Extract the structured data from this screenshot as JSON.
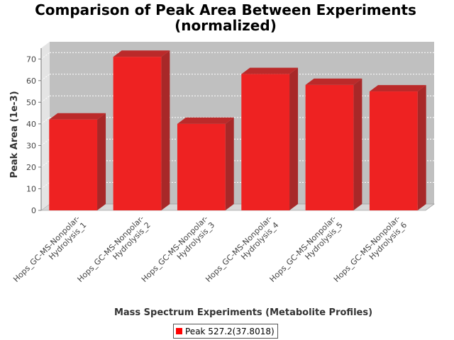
{
  "chart_data": {
    "type": "bar",
    "title": "Comparison of Peak Area Between Experiments",
    "subtitle": "(normalized)",
    "xlabel": "Mass Spectrum Experiments (Metabolite Profiles)",
    "ylabel": "Peak Area (1e-3)",
    "categories": [
      "Hops_GC-MS-Nonpolar-Hydrolysis_1",
      "Hops_GC-MS-Nonpolar-Hydrolysis_2",
      "Hops_GC-MS-Nonpolar-Hydrolysis_3",
      "Hops_GC-MS-Nonpolar-Hydrolysis_4",
      "Hops_GC-MS-Nonpolar-Hydrolysis_5",
      "Hops_GC-MS-Nonpolar-Hydrolysis_6"
    ],
    "category_lines": [
      [
        "Hops_GC-MS-Nonpolar-",
        "Hydrolysis_1"
      ],
      [
        "Hops_GC-MS-Nonpolar-",
        "Hydrolysis_2"
      ],
      [
        "Hops_GC-MS-Nonpolar-",
        "Hydrolysis_3"
      ],
      [
        "Hops_GC-MS-Nonpolar-",
        "Hydrolysis_4"
      ],
      [
        "Hops_GC-MS-Nonpolar-",
        "Hydrolysis_5"
      ],
      [
        "Hops_GC-MS-Nonpolar-",
        "Hydrolysis_6"
      ]
    ],
    "series": [
      {
        "name": "Peak 527.2(37.8018)",
        "values": [
          42,
          71,
          40,
          63,
          58,
          55
        ]
      }
    ],
    "ylim": [
      0,
      75
    ],
    "yticks": [
      0,
      10,
      20,
      30,
      40,
      50,
      60,
      70
    ],
    "grid": true,
    "legend": "bottom-center",
    "colors": {
      "bar_front": "#ee2222",
      "bar_top": "#bb2a2a",
      "bar_side": "#a82828",
      "plot_back": "#c0c0c0",
      "plot_floor": "#d6d6d6",
      "plot_left": "#e4e4e4",
      "grid": "#ffffff"
    }
  }
}
